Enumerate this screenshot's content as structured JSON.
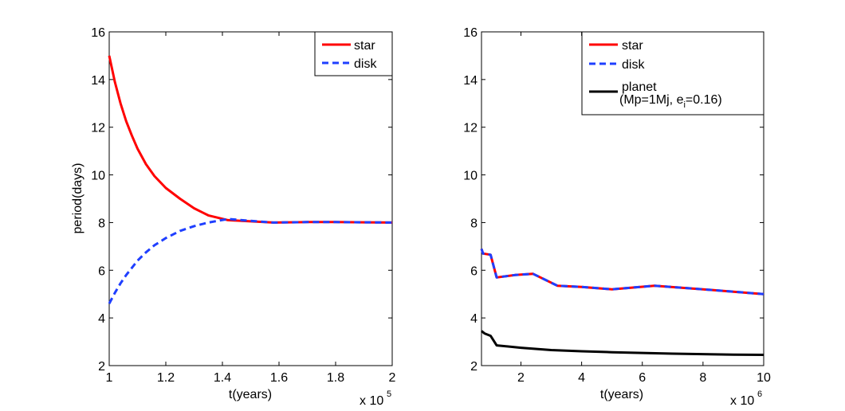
{
  "chart_data": [
    {
      "type": "line",
      "xlabel": "t(years)",
      "ylabel": "period(days)",
      "xlim": [
        1,
        2
      ],
      "ylim": [
        2,
        16
      ],
      "x_ticks": [
        "1",
        "1.2",
        "1.4",
        "1.6",
        "1.8",
        "2"
      ],
      "y_ticks": [
        "2",
        "4",
        "6",
        "8",
        "10",
        "12",
        "14",
        "16"
      ],
      "x_multiplier": {
        "base": "x 10",
        "exponent": "5"
      },
      "legend_position": "top-right",
      "series": [
        {
          "name": "star",
          "color": "#ff0000",
          "dash": "solid",
          "x": [
            1.0,
            1.02,
            1.04,
            1.06,
            1.08,
            1.1,
            1.13,
            1.16,
            1.2,
            1.25,
            1.3,
            1.35,
            1.42,
            1.5,
            1.58,
            1.7,
            1.8,
            1.9,
            2.0
          ],
          "y": [
            15.0,
            13.9,
            13.0,
            12.25,
            11.65,
            11.1,
            10.45,
            9.95,
            9.45,
            9.0,
            8.6,
            8.3,
            8.1,
            8.05,
            8.0,
            8.02,
            8.02,
            8.01,
            8.0
          ]
        },
        {
          "name": "disk",
          "color": "#1f3fff",
          "dash": "dashed",
          "x": [
            1.0,
            1.02,
            1.04,
            1.06,
            1.08,
            1.1,
            1.13,
            1.16,
            1.2,
            1.25,
            1.3,
            1.35,
            1.42,
            1.5,
            1.58,
            1.7,
            1.8,
            1.9,
            2.0
          ],
          "y": [
            4.6,
            5.05,
            5.45,
            5.8,
            6.1,
            6.4,
            6.75,
            7.05,
            7.35,
            7.65,
            7.85,
            8.0,
            8.15,
            8.07,
            8.0,
            8.02,
            8.02,
            8.01,
            8.0
          ]
        }
      ]
    },
    {
      "type": "line",
      "xlabel": "t(years)",
      "ylabel": "",
      "xlim": [
        0.7,
        10
      ],
      "ylim": [
        2,
        16
      ],
      "x_ticks": [
        "2",
        "4",
        "6",
        "8",
        "10"
      ],
      "y_ticks": [
        "2",
        "4",
        "6",
        "8",
        "10",
        "12",
        "14",
        "16"
      ],
      "x_multiplier": {
        "base": "x 10",
        "exponent": "6"
      },
      "legend_position": "top-right",
      "series": [
        {
          "name": "star",
          "color": "#ff0000",
          "dash": "solid",
          "x": [
            0.7,
            0.75,
            1.0,
            1.2,
            1.8,
            2.4,
            3.2,
            4.0,
            5.0,
            6.4,
            8.0,
            9.0,
            10.0
          ],
          "y": [
            6.9,
            6.7,
            6.65,
            5.7,
            5.8,
            5.85,
            5.35,
            5.3,
            5.2,
            5.35,
            5.2,
            5.1,
            5.0
          ]
        },
        {
          "name": "disk",
          "color": "#1f3fff",
          "dash": "dashed",
          "x": [
            0.7,
            0.75,
            1.0,
            1.2,
            1.8,
            2.4,
            3.2,
            4.0,
            5.0,
            6.4,
            8.0,
            9.0,
            10.0
          ],
          "y": [
            6.9,
            6.7,
            6.65,
            5.7,
            5.8,
            5.85,
            5.35,
            5.3,
            5.2,
            5.35,
            5.2,
            5.1,
            5.0
          ]
        },
        {
          "name": "planet",
          "color": "#000000",
          "dash": "solid",
          "x": [
            0.7,
            0.8,
            1.0,
            1.2,
            2.0,
            3.0,
            4.0,
            5.0,
            6.0,
            7.0,
            8.0,
            9.0,
            10.0
          ],
          "y": [
            3.45,
            3.35,
            3.25,
            2.85,
            2.75,
            2.65,
            2.6,
            2.56,
            2.53,
            2.5,
            2.48,
            2.46,
            2.45
          ]
        }
      ],
      "legend_extra": {
        "line1": "(Mp=1Mj, e",
        "sub": "i",
        "line2": "=0.16)"
      }
    }
  ]
}
